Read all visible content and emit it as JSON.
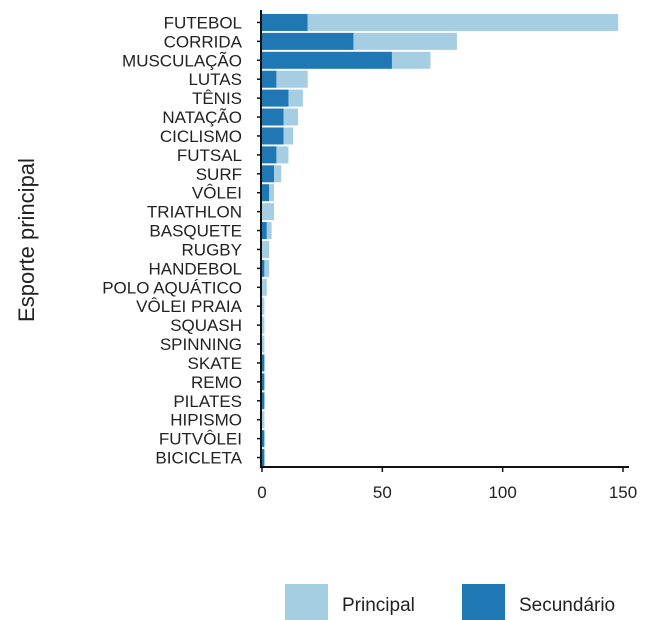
{
  "chart_data": {
    "type": "bar",
    "orientation": "horizontal",
    "stacked": true,
    "title": "",
    "xlabel": "",
    "ylabel": "Esporte principal",
    "xlim": [
      0,
      150
    ],
    "x_ticks": [
      0,
      50,
      100,
      150
    ],
    "grid": false,
    "legend_position": "bottom-right",
    "categories": [
      "FUTEBOL",
      "CORRIDA",
      "MUSCULAÇÃO",
      "LUTAS",
      "TÊNIS",
      "NATAÇÃO",
      "CICLISMO",
      "FUTSAL",
      "SURF",
      "VÔLEI",
      "TRIATHLON",
      "BASQUETE",
      "RUGBY",
      "HANDEBOL",
      "POLO AQUÁTICO",
      "VÔLEI PRAIA",
      "SQUASH",
      "SPINNING",
      "SKATE",
      "REMO",
      "PILATES",
      "HIPISMO",
      "FUTVÔLEI",
      "BICICLETA"
    ],
    "series": [
      {
        "name": "Secundário",
        "color": "#1f78b4",
        "values": [
          19,
          38,
          54,
          6,
          11,
          9,
          9,
          6,
          5,
          3,
          0,
          2,
          0,
          1,
          0,
          0,
          0,
          0,
          1,
          1,
          1,
          0,
          1,
          1
        ]
      },
      {
        "name": "Principal",
        "color": "#a6cee3",
        "values": [
          129,
          43,
          16,
          13,
          6,
          6,
          4,
          5,
          3,
          2,
          5,
          2,
          3,
          2,
          2,
          1,
          1,
          1,
          0,
          0,
          0,
          1,
          0,
          0
        ]
      }
    ],
    "legend": [
      {
        "name": "Principal",
        "color": "#a6cee3"
      },
      {
        "name": "Secundário",
        "color": "#1f78b4"
      }
    ]
  }
}
